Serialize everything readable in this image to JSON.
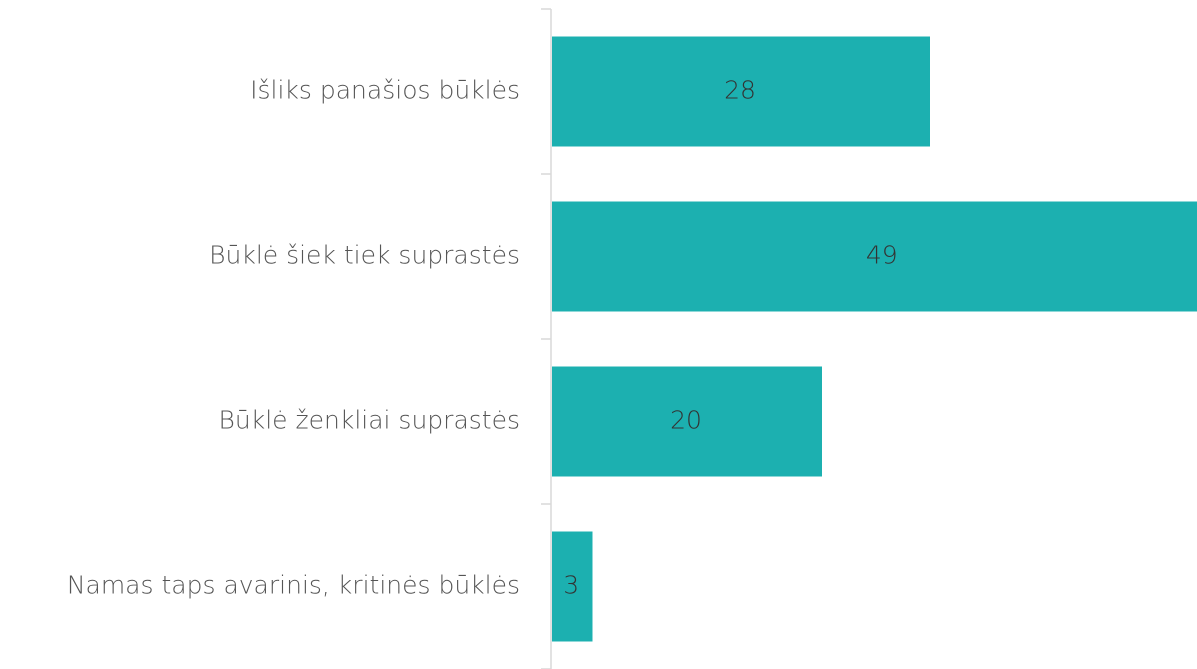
{
  "chart_data": {
    "type": "bar",
    "orientation": "horizontal",
    "categories": [
      "Išliks panašios būklės",
      "Būklė šiek tiek suprastės",
      "Būklė ženkliai suprastės",
      "Namas taps avarinis, kritinės būklės"
    ],
    "values": [
      28,
      49,
      20,
      3
    ],
    "color": "#1cb0b0"
  }
}
